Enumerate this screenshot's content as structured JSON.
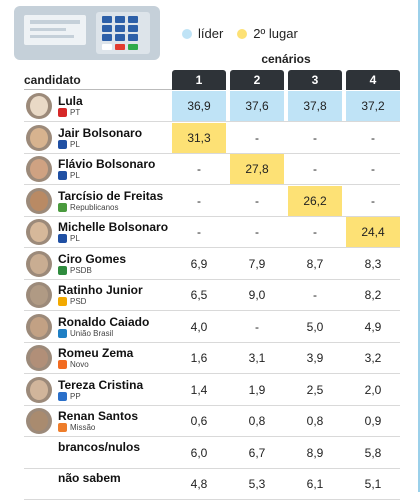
{
  "legend": {
    "leader_label": "líder",
    "second_label": "2º lugar",
    "leader_color": "#bfe3f6",
    "second_color": "#fde175"
  },
  "header": {
    "candidate_label": "candidato",
    "scenarios_label": "cenários"
  },
  "chart_data": {
    "type": "table",
    "title": "",
    "categories": [
      "1",
      "2",
      "3",
      "4"
    ],
    "rows": [
      {
        "name": "Lula",
        "party": "PT",
        "icon": "pt-star-icon",
        "values": [
          "36,9",
          "37,6",
          "37,8",
          "37,2"
        ]
      },
      {
        "name": "Jair Bolsonaro",
        "party": "PL",
        "icon": "pl-logo-icon",
        "values": [
          "31,3",
          "-",
          "-",
          "-"
        ]
      },
      {
        "name": "Flávio Bolsonaro",
        "party": "PL",
        "icon": "pl-logo-icon",
        "values": [
          "-",
          "27,8",
          "-",
          "-"
        ]
      },
      {
        "name": "Tarcísio de Freitas",
        "party": "Republicanos",
        "icon": "republicanos-logo-icon",
        "values": [
          "-",
          "-",
          "26,2",
          "-"
        ]
      },
      {
        "name": "Michelle Bolsonaro",
        "party": "PL",
        "icon": "pl-logo-icon",
        "values": [
          "-",
          "-",
          "-",
          "24,4"
        ]
      },
      {
        "name": "Ciro Gomes",
        "party": "PSDB",
        "icon": "psdb-logo-icon",
        "values": [
          "6,9",
          "7,9",
          "8,7",
          "8,3"
        ]
      },
      {
        "name": "Ratinho Junior",
        "party": "PSD",
        "icon": "psd-logo-icon",
        "values": [
          "6,5",
          "9,0",
          "-",
          "8,2"
        ]
      },
      {
        "name": "Ronaldo Caiado",
        "party": "União Brasil",
        "icon": "uniao-brasil-logo-icon",
        "values": [
          "4,0",
          "-",
          "5,0",
          "4,9"
        ]
      },
      {
        "name": "Romeu Zema",
        "party": "Novo",
        "icon": "novo-logo-icon",
        "values": [
          "1,6",
          "3,1",
          "3,9",
          "3,2"
        ]
      },
      {
        "name": "Tereza Cristina",
        "party": "PP",
        "icon": "pp-logo-icon",
        "values": [
          "1,4",
          "1,9",
          "2,5",
          "2,0"
        ]
      },
      {
        "name": "Renan Santos",
        "party": "Missão",
        "icon": "missao-logo-icon",
        "values": [
          "0,6",
          "0,8",
          "0,8",
          "0,9"
        ]
      },
      {
        "name": "brancos/nulos",
        "party": "",
        "icon": "",
        "values": [
          "6,0",
          "6,7",
          "8,9",
          "5,8"
        ]
      },
      {
        "name": "não sabem",
        "party": "",
        "icon": "",
        "values": [
          "4,8",
          "5,3",
          "6,1",
          "5,1"
        ]
      }
    ],
    "highlights": [
      {
        "row": 0,
        "col": 0,
        "kind": "leader"
      },
      {
        "row": 0,
        "col": 1,
        "kind": "leader"
      },
      {
        "row": 0,
        "col": 2,
        "kind": "leader"
      },
      {
        "row": 0,
        "col": 3,
        "kind": "leader"
      },
      {
        "row": 1,
        "col": 0,
        "kind": "second"
      },
      {
        "row": 2,
        "col": 1,
        "kind": "second"
      },
      {
        "row": 3,
        "col": 2,
        "kind": "second"
      },
      {
        "row": 4,
        "col": 3,
        "kind": "second"
      }
    ]
  }
}
